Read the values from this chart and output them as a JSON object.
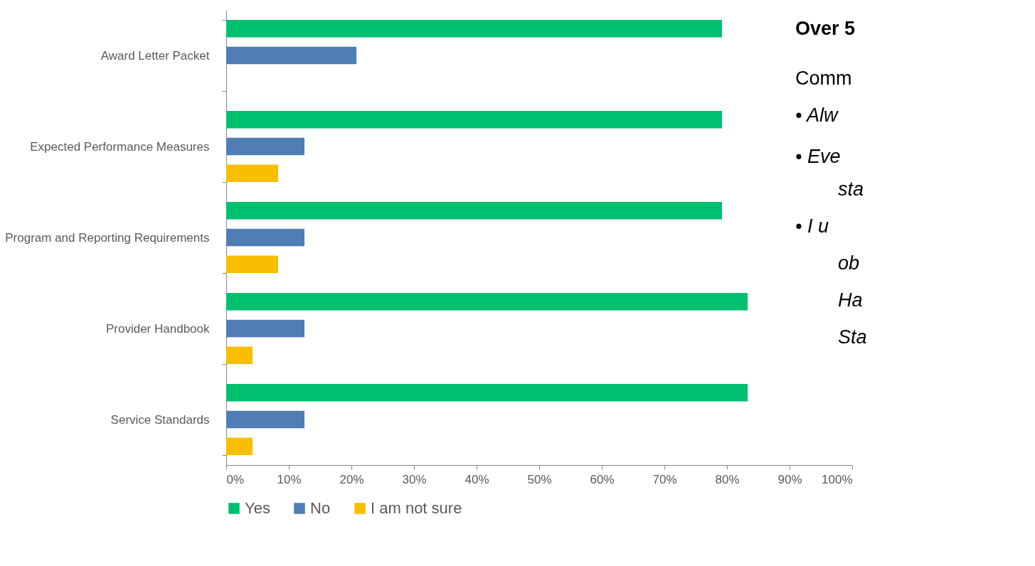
{
  "chart_data": {
    "type": "bar",
    "orientation": "horizontal",
    "categories": [
      "Award Letter Packet",
      "Expected Performance Measures",
      "Program and Reporting Requirements",
      "Provider Handbook",
      "Service Standards"
    ],
    "series": [
      {
        "name": "Yes",
        "color": "#00bf6f",
        "values": [
          79.2,
          79.2,
          79.2,
          83.3,
          83.3
        ]
      },
      {
        "name": "No",
        "color": "#4f7db5",
        "values": [
          20.8,
          12.5,
          12.5,
          12.5,
          12.5
        ]
      },
      {
        "name": "I am not sure",
        "color": "#f8be00",
        "values": [
          0,
          8.3,
          8.3,
          4.2,
          4.2
        ]
      }
    ],
    "xlim": [
      0,
      100
    ],
    "xticks": [
      {
        "value": 0,
        "label": "0%"
      },
      {
        "value": 10,
        "label": "10%"
      },
      {
        "value": 20,
        "label": "20%"
      },
      {
        "value": 30,
        "label": "30%"
      },
      {
        "value": 40,
        "label": "40%"
      },
      {
        "value": 50,
        "label": "50%"
      },
      {
        "value": 60,
        "label": "60%"
      },
      {
        "value": 70,
        "label": "70%"
      },
      {
        "value": 80,
        "label": "80%"
      },
      {
        "value": 90,
        "label": "90%"
      },
      {
        "value": 100,
        "label": "100%"
      }
    ],
    "grid": false,
    "legend": "bottom",
    "annotations": [
      "Over 5",
      "Comm",
      "• Alw",
      "• Eve",
      "sta",
      "• I u",
      "ob",
      "Ha",
      "Sta"
    ]
  }
}
